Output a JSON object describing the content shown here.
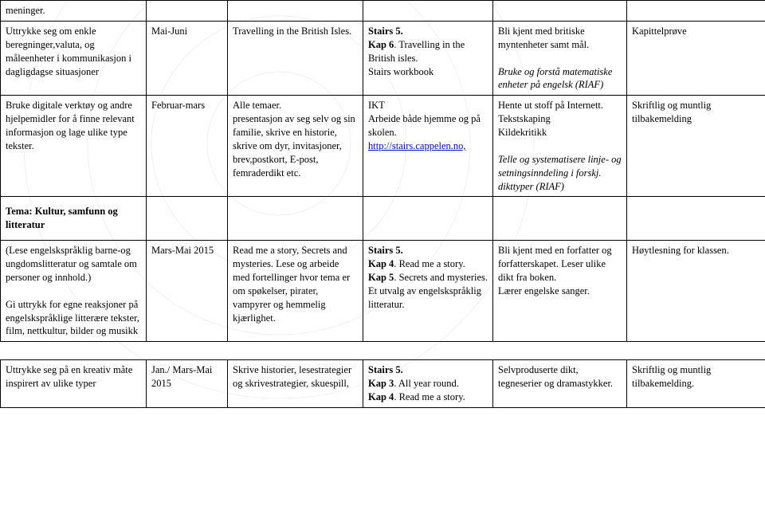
{
  "watermark": {
    "stroke": "#f0f0f0",
    "stroke_width": 1
  },
  "link_color": "#0000ee",
  "rows": [
    {
      "c1": {
        "parts": [
          {
            "t": "meninger."
          }
        ]
      },
      "c2": "",
      "c3": "",
      "c4": "",
      "c5": "",
      "c6": ""
    },
    {
      "c1": {
        "parts": [
          {
            "t": "Uttrykke seg om enkle beregninger,valuta, og måleenheter i kommunikasjon i dagligdagse situasjoner"
          }
        ]
      },
      "c2": {
        "parts": [
          {
            "t": "Mai-Juni"
          }
        ]
      },
      "c3": {
        "parts": [
          {
            "t": "Travelling in the British Isles."
          }
        ]
      },
      "c4": {
        "parts": [
          {
            "t": "Stairs 5.",
            "b": true
          },
          {
            "br": true
          },
          {
            "t": "Kap 6",
            "b": true
          },
          {
            "t": ". Travelling in the British isles."
          },
          {
            "br": true
          },
          {
            "t": "Stairs workbook"
          }
        ]
      },
      "c5": {
        "parts": [
          {
            "t": "Bli kjent med britiske myntenheter samt mål."
          },
          {
            "br": true
          },
          {
            "br": true
          },
          {
            "t": "Bruke og forstå matematiske enheter på engelsk (RIAF)",
            "i": true
          }
        ]
      },
      "c6": {
        "parts": [
          {
            "t": "Kapittelprøve"
          }
        ]
      }
    },
    {
      "c1": {
        "parts": [
          {
            "t": "Bruke digitale verktøy og andre hjelpemidler for å finne relevant informasjon og lage ulike type tekster."
          }
        ]
      },
      "c2": {
        "parts": [
          {
            "t": "Februar-mars"
          }
        ]
      },
      "c3": {
        "parts": [
          {
            "t": "Alle temaer."
          },
          {
            "br": true
          },
          {
            "t": "presentasjon av seg selv og sin familie, skrive en historie, skrive om dyr, invitasjoner, brev,postkort, E-post, femraderdikt etc."
          }
        ]
      },
      "c4": {
        "parts": [
          {
            "t": "IKT"
          },
          {
            "br": true
          },
          {
            "t": "Arbeide både hjemme og på skolen."
          },
          {
            "br": true
          },
          {
            "t": "http://stairs.cappelen.no,",
            "link": true
          }
        ]
      },
      "c5": {
        "parts": [
          {
            "t": "Hente ut stoff på Internett."
          },
          {
            "br": true
          },
          {
            "t": "Tekstskaping"
          },
          {
            "br": true
          },
          {
            "t": "Kildekritikk"
          },
          {
            "br": true
          },
          {
            "br": true
          },
          {
            "t": "Telle og systematisere linje- og setningsinndeling i forskj. dikttyper (RIAF)",
            "i": true
          }
        ]
      },
      "c6": {
        "parts": [
          {
            "t": "Skriftlig og muntlig tilbakemelding"
          }
        ]
      }
    },
    {
      "section": true,
      "c1": {
        "parts": [
          {
            "t": "Tema: Kultur, samfunn og litteratur",
            "b": true
          }
        ]
      },
      "c2": "",
      "c3": "",
      "c4": "",
      "c5": "",
      "c6": ""
    },
    {
      "c1": {
        "parts": [
          {
            "t": "(Lese engelskspråklig barne-og ungdomslitteratur og samtale om personer og innhold.)"
          },
          {
            "br": true
          },
          {
            "br": true
          },
          {
            "t": "Gi uttrykk for egne reaksjoner på engelskspråklige litterære tekster, film, nettkultur, bilder og musikk"
          }
        ]
      },
      "c2": {
        "parts": [
          {
            "t": "Mars-Mai 2015"
          }
        ]
      },
      "c3": {
        "parts": [
          {
            "t": "Read me a story, Secrets and mysteries. Lese og arbeide med fortellinger hvor tema er om spøkelser, pirater, vampyrer og hemmelig kjærlighet."
          }
        ]
      },
      "c4": {
        "parts": [
          {
            "t": "Stairs 5.",
            "b": true
          },
          {
            "br": true
          },
          {
            "t": "Kap 4",
            "b": true
          },
          {
            "t": ". Read me a story."
          },
          {
            "br": true
          },
          {
            "t": "Kap 5",
            "b": true
          },
          {
            "t": ". Secrets and mysteries."
          },
          {
            "br": true
          },
          {
            "t": "Et utvalg av engelskspråklig litteratur."
          }
        ]
      },
      "c5": {
        "parts": [
          {
            "t": "Bli kjent med en forfatter og forfatterskapet. Leser ulike dikt fra boken."
          },
          {
            "br": true
          },
          {
            "t": "Lærer engelske sanger."
          }
        ]
      },
      "c6": {
        "parts": [
          {
            "t": "Høytlesning for klassen."
          }
        ]
      }
    },
    {
      "spacer": true
    },
    {
      "c1": {
        "parts": [
          {
            "t": "Uttrykke seg på en kreativ måte inspirert av ulike typer"
          }
        ]
      },
      "c2": {
        "parts": [
          {
            "t": "Jan./ Mars-Mai 2015"
          }
        ]
      },
      "c3": {
        "parts": [
          {
            "t": "Skrive historier, lesestrategier og skrivestrategier, skuespill,"
          }
        ]
      },
      "c4": {
        "parts": [
          {
            "t": "Stairs 5.",
            "b": true
          },
          {
            "br": true
          },
          {
            "t": "Kap 3",
            "b": true
          },
          {
            "t": ". All year round."
          },
          {
            "br": true
          },
          {
            "t": "Kap 4",
            "b": true
          },
          {
            "t": ". Read me a story."
          }
        ]
      },
      "c5": {
        "parts": [
          {
            "t": "Selvproduserte dikt, tegneserier og dramastykker."
          }
        ]
      },
      "c6": {
        "parts": [
          {
            "t": "Skriftlig og muntlig tilbakemelding."
          }
        ]
      }
    }
  ]
}
